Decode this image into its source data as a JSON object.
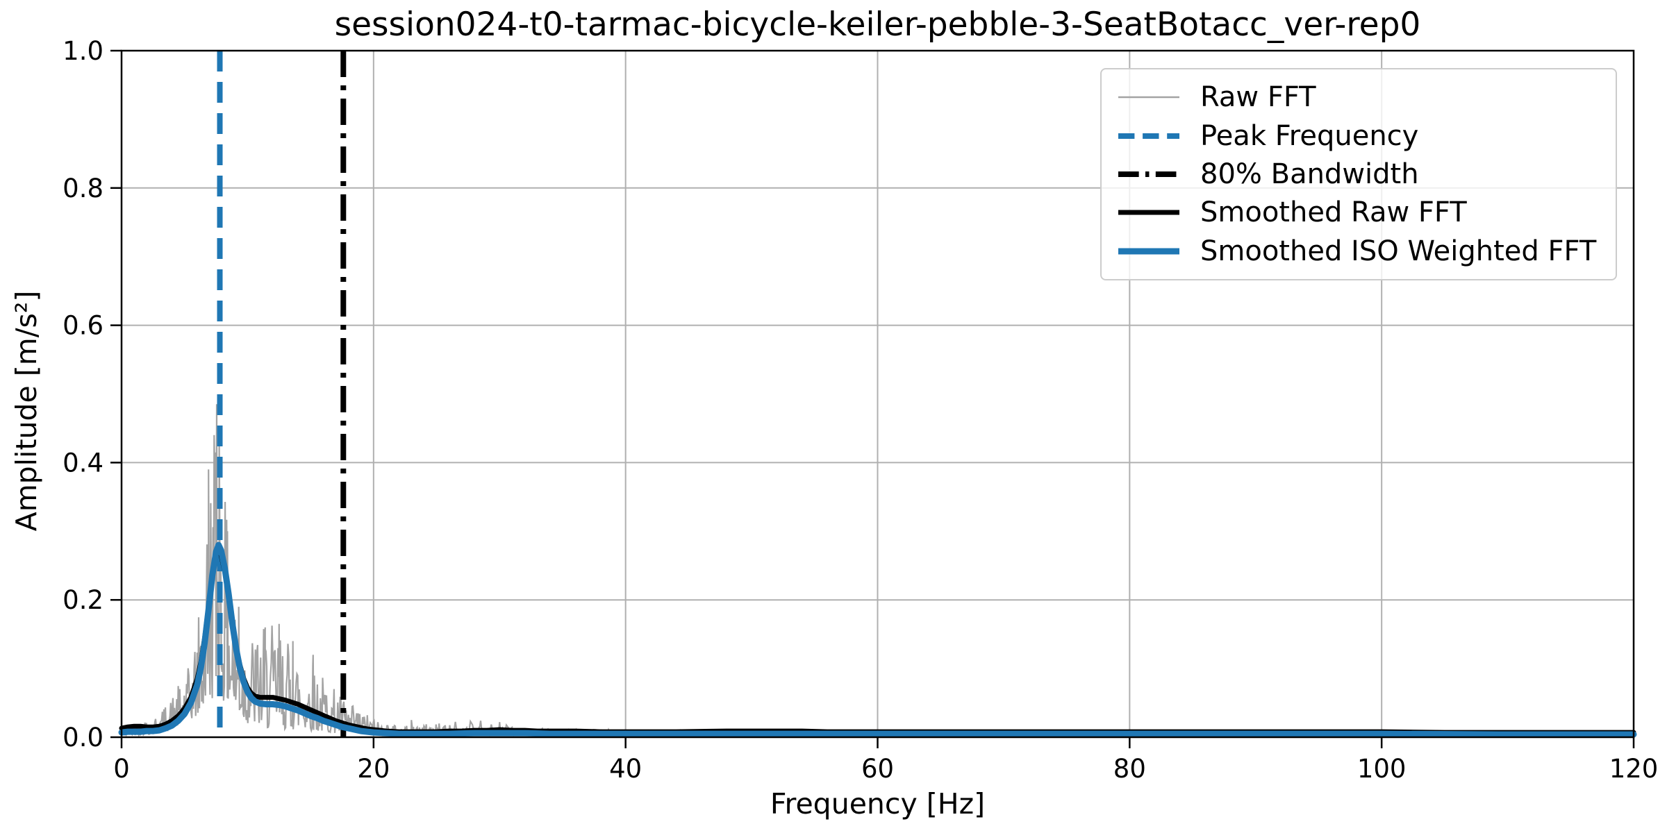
{
  "chart_data": {
    "type": "line",
    "title": "session024-t0-tarmac-bicycle-keiler-pebble-3-SeatBotacc_ver-rep0",
    "xlabel": "Frequency [Hz]",
    "ylabel": "Amplitude [m/s²]",
    "xlim": [
      0,
      120
    ],
    "ylim": [
      0.0,
      1.0
    ],
    "grid": true,
    "legend_position": "upper right",
    "x_tick_values": [
      0,
      20,
      40,
      60,
      80,
      100,
      120
    ],
    "x_tick_labels": [
      "0",
      "20",
      "40",
      "60",
      "80",
      "100",
      "120"
    ],
    "y_tick_values": [
      0.0,
      0.2,
      0.4,
      0.6,
      0.8,
      1.0
    ],
    "y_tick_labels": [
      "0.0",
      "0.2",
      "0.4",
      "0.6",
      "0.8",
      "1.0"
    ],
    "annotations": {
      "peak_frequency_hz": 7.8,
      "bandwidth_80_hz": 17.6,
      "smoothed_peak_amplitude": 0.28,
      "raw_peak_amplitude": 0.485
    },
    "colors": {
      "blue": "#1f77b4",
      "black": "#000000",
      "raw_gray": "#a3a3a3",
      "grid": "#b0b0b0",
      "legend_border": "#cccccc"
    },
    "series": [
      {
        "name": "Raw FFT",
        "kind": "noise",
        "color": "#a3a3a3",
        "linewidth": 2.2,
        "seed": 42,
        "step_fine": 0.06,
        "fine_until": 26,
        "step_coarse": 0.15,
        "envelope": [
          [
            0,
            0.002,
            0.012
          ],
          [
            1,
            0.003,
            0.022
          ],
          [
            2,
            0.004,
            0.028
          ],
          [
            3,
            0.006,
            0.035
          ],
          [
            4,
            0.012,
            0.06
          ],
          [
            5,
            0.02,
            0.09
          ],
          [
            5.5,
            0.025,
            0.11
          ],
          [
            6,
            0.03,
            0.16
          ],
          [
            6.5,
            0.04,
            0.25
          ],
          [
            7,
            0.05,
            0.4
          ],
          [
            7.3,
            0.06,
            0.485
          ],
          [
            7.8,
            0.06,
            0.46
          ],
          [
            8.2,
            0.05,
            0.35
          ],
          [
            8.4,
            0.045,
            0.31
          ],
          [
            8.6,
            0.04,
            0.27
          ],
          [
            9,
            0.03,
            0.2
          ],
          [
            9.5,
            0.025,
            0.17
          ],
          [
            10,
            0.02,
            0.155
          ],
          [
            11,
            0.015,
            0.16
          ],
          [
            12,
            0.012,
            0.165
          ],
          [
            13,
            0.012,
            0.15
          ],
          [
            14,
            0.01,
            0.13
          ],
          [
            15,
            0.01,
            0.12
          ],
          [
            16,
            0.008,
            0.09
          ],
          [
            17,
            0.006,
            0.07
          ],
          [
            18,
            0.005,
            0.05
          ],
          [
            19,
            0.004,
            0.04
          ],
          [
            20,
            0.003,
            0.028
          ],
          [
            21,
            0.003,
            0.022
          ],
          [
            22,
            0.003,
            0.018
          ],
          [
            24,
            0.003,
            0.02
          ],
          [
            26,
            0.003,
            0.022
          ],
          [
            28,
            0.004,
            0.024
          ],
          [
            30,
            0.004,
            0.022
          ],
          [
            32,
            0.003,
            0.016
          ],
          [
            34,
            0.003,
            0.013
          ],
          [
            36,
            0.002,
            0.012
          ],
          [
            40,
            0.002,
            0.01
          ],
          [
            50,
            0.002,
            0.009
          ],
          [
            60,
            0.002,
            0.008
          ],
          [
            70,
            0.002,
            0.008
          ],
          [
            80,
            0.002,
            0.009
          ],
          [
            90,
            0.002,
            0.008
          ],
          [
            100,
            0.002,
            0.009
          ],
          [
            110,
            0.002,
            0.008
          ],
          [
            120,
            0.002,
            0.008
          ]
        ],
        "spikes": [
          [
            6.9,
            0.39
          ],
          [
            7.35,
            0.44
          ],
          [
            7.55,
            0.485
          ],
          [
            7.75,
            0.43
          ],
          [
            8.4,
            0.3
          ],
          [
            9.3,
            0.19
          ],
          [
            11.4,
            0.16
          ],
          [
            12.5,
            0.165
          ],
          [
            13.6,
            0.14
          ],
          [
            15.2,
            0.12
          ],
          [
            23.0,
            0.025
          ],
          [
            28.5,
            0.024
          ],
          [
            30.0,
            0.022
          ]
        ]
      },
      {
        "name": "Peak Frequency",
        "kind": "vline",
        "x": 7.8,
        "color": "#1f77b4",
        "linewidth": 8,
        "dash": [
          30,
          15
        ]
      },
      {
        "name": "80% Bandwidth",
        "kind": "vline",
        "x": 17.6,
        "color": "#000000",
        "linewidth": 8,
        "dash": [
          38,
          12,
          7,
          12
        ]
      },
      {
        "name": "Smoothed Raw FFT",
        "kind": "line",
        "color": "#000000",
        "linewidth": 7,
        "points": [
          [
            0,
            0.013
          ],
          [
            0.5,
            0.015
          ],
          [
            1,
            0.016
          ],
          [
            1.5,
            0.016
          ],
          [
            2,
            0.015
          ],
          [
            2.5,
            0.015
          ],
          [
            3,
            0.016
          ],
          [
            3.5,
            0.019
          ],
          [
            4,
            0.024
          ],
          [
            4.5,
            0.031
          ],
          [
            5,
            0.042
          ],
          [
            5.5,
            0.058
          ],
          [
            6,
            0.085
          ],
          [
            6.3,
            0.11
          ],
          [
            6.6,
            0.145
          ],
          [
            6.9,
            0.19
          ],
          [
            7.2,
            0.235
          ],
          [
            7.5,
            0.265
          ],
          [
            7.7,
            0.272
          ],
          [
            7.9,
            0.265
          ],
          [
            8.2,
            0.24
          ],
          [
            8.5,
            0.205
          ],
          [
            8.8,
            0.165
          ],
          [
            9.1,
            0.13
          ],
          [
            9.4,
            0.105
          ],
          [
            9.7,
            0.085
          ],
          [
            10,
            0.072
          ],
          [
            10.3,
            0.064
          ],
          [
            10.6,
            0.06
          ],
          [
            11,
            0.058
          ],
          [
            11.5,
            0.058
          ],
          [
            12,
            0.058
          ],
          [
            12.5,
            0.056
          ],
          [
            13,
            0.054
          ],
          [
            13.5,
            0.051
          ],
          [
            14,
            0.048
          ],
          [
            14.5,
            0.044
          ],
          [
            15,
            0.04
          ],
          [
            15.5,
            0.036
          ],
          [
            16,
            0.032
          ],
          [
            16.5,
            0.028
          ],
          [
            17,
            0.024
          ],
          [
            17.5,
            0.021
          ],
          [
            18,
            0.018
          ],
          [
            18.5,
            0.016
          ],
          [
            19,
            0.014
          ],
          [
            19.5,
            0.012
          ],
          [
            20,
            0.011
          ],
          [
            21,
            0.009
          ],
          [
            22,
            0.008
          ],
          [
            23,
            0.008
          ],
          [
            24,
            0.008
          ],
          [
            25,
            0.008
          ],
          [
            26,
            0.009
          ],
          [
            27,
            0.009
          ],
          [
            28,
            0.01
          ],
          [
            29,
            0.01
          ],
          [
            30,
            0.011
          ],
          [
            31,
            0.01
          ],
          [
            32,
            0.01
          ],
          [
            33,
            0.009
          ],
          [
            34,
            0.009
          ],
          [
            36,
            0.009
          ],
          [
            38,
            0.008
          ],
          [
            40,
            0.008
          ],
          [
            44,
            0.008
          ],
          [
            48,
            0.009
          ],
          [
            50,
            0.009
          ],
          [
            52,
            0.009
          ],
          [
            54,
            0.009
          ],
          [
            56,
            0.008
          ],
          [
            60,
            0.008
          ],
          [
            65,
            0.008
          ],
          [
            70,
            0.008
          ],
          [
            75,
            0.008
          ],
          [
            80,
            0.008
          ],
          [
            85,
            0.008
          ],
          [
            90,
            0.008
          ],
          [
            95,
            0.008
          ],
          [
            100,
            0.008
          ],
          [
            105,
            0.007
          ],
          [
            110,
            0.007
          ],
          [
            115,
            0.007
          ],
          [
            120,
            0.007
          ]
        ]
      },
      {
        "name": "Smoothed ISO Weighted FFT",
        "kind": "line",
        "color": "#1f77b4",
        "linewidth": 9,
        "points": [
          [
            0,
            0.007
          ],
          [
            0.5,
            0.008
          ],
          [
            1,
            0.008
          ],
          [
            1.5,
            0.008
          ],
          [
            2,
            0.009
          ],
          [
            2.5,
            0.009
          ],
          [
            3,
            0.01
          ],
          [
            3.5,
            0.013
          ],
          [
            4,
            0.017
          ],
          [
            4.5,
            0.024
          ],
          [
            5,
            0.034
          ],
          [
            5.5,
            0.05
          ],
          [
            6,
            0.076
          ],
          [
            6.3,
            0.102
          ],
          [
            6.6,
            0.138
          ],
          [
            6.9,
            0.185
          ],
          [
            7.2,
            0.235
          ],
          [
            7.5,
            0.27
          ],
          [
            7.7,
            0.28
          ],
          [
            7.9,
            0.272
          ],
          [
            8.2,
            0.245
          ],
          [
            8.5,
            0.208
          ],
          [
            8.8,
            0.165
          ],
          [
            9.1,
            0.128
          ],
          [
            9.4,
            0.1
          ],
          [
            9.7,
            0.08
          ],
          [
            10,
            0.066
          ],
          [
            10.3,
            0.057
          ],
          [
            10.6,
            0.052
          ],
          [
            11,
            0.049
          ],
          [
            11.5,
            0.048
          ],
          [
            12,
            0.048
          ],
          [
            12.5,
            0.047
          ],
          [
            13,
            0.045
          ],
          [
            13.5,
            0.042
          ],
          [
            14,
            0.039
          ],
          [
            14.5,
            0.035
          ],
          [
            15,
            0.031
          ],
          [
            15.5,
            0.028
          ],
          [
            16,
            0.024
          ],
          [
            16.5,
            0.021
          ],
          [
            17,
            0.018
          ],
          [
            17.5,
            0.015
          ],
          [
            18,
            0.013
          ],
          [
            18.5,
            0.011
          ],
          [
            19,
            0.009
          ],
          [
            19.5,
            0.008
          ],
          [
            20,
            0.007
          ],
          [
            21,
            0.006
          ],
          [
            22,
            0.005
          ],
          [
            24,
            0.005
          ],
          [
            26,
            0.005
          ],
          [
            28,
            0.006
          ],
          [
            30,
            0.006
          ],
          [
            32,
            0.006
          ],
          [
            34,
            0.005
          ],
          [
            36,
            0.005
          ],
          [
            40,
            0.005
          ],
          [
            45,
            0.005
          ],
          [
            50,
            0.005
          ],
          [
            55,
            0.005
          ],
          [
            60,
            0.005
          ],
          [
            70,
            0.005
          ],
          [
            80,
            0.005
          ],
          [
            90,
            0.005
          ],
          [
            100,
            0.005
          ],
          [
            110,
            0.004
          ],
          [
            120,
            0.004
          ]
        ]
      }
    ]
  }
}
